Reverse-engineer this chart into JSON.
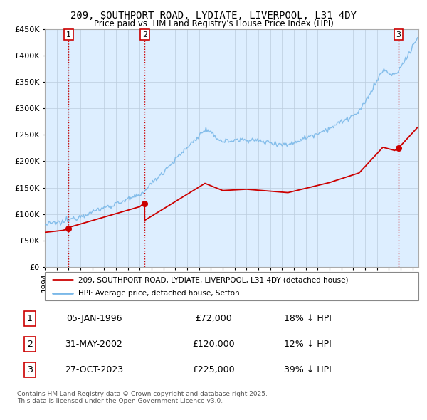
{
  "title": "209, SOUTHPORT ROAD, LYDIATE, LIVERPOOL, L31 4DY",
  "subtitle": "Price paid vs. HM Land Registry's House Price Index (HPI)",
  "ylim": [
    0,
    450000
  ],
  "sale_dates_iso": [
    "1996-01-05",
    "2002-05-31",
    "2023-10-27"
  ],
  "sale_prices": [
    72000,
    120000,
    225000
  ],
  "sale_labels": [
    "1",
    "2",
    "3"
  ],
  "sale_pct": [
    "18% ↓ HPI",
    "12% ↓ HPI",
    "39% ↓ HPI"
  ],
  "table_dates": [
    "05-JAN-1996",
    "31-MAY-2002",
    "27-OCT-2023"
  ],
  "table_prices": [
    "£72,000",
    "£120,000",
    "£225,000"
  ],
  "legend_house": "209, SOUTHPORT ROAD, LYDIATE, LIVERPOOL, L31 4DY (detached house)",
  "legend_hpi": "HPI: Average price, detached house, Sefton",
  "footnote": "Contains HM Land Registry data © Crown copyright and database right 2025.\nThis data is licensed under the Open Government Licence v3.0.",
  "house_color": "#cc0000",
  "hpi_color": "#7ab8e8",
  "chart_bg_color": "#ddeeff",
  "grid_color": "#bbccdd"
}
